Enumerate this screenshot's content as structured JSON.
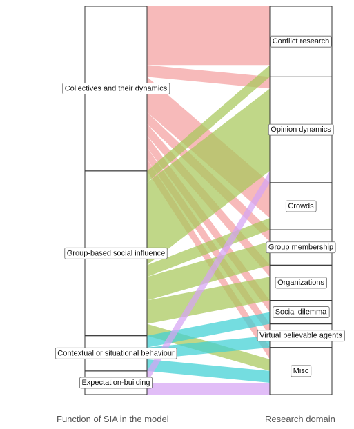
{
  "chart_data": {
    "type": "alluvial",
    "xlabel_left": "Function of SIA in the model",
    "xlabel_right": "Research domain",
    "left_strata": [
      {
        "label": "Collectives and their dynamics",
        "color": "#f4a0a0"
      },
      {
        "label": "Group-based social influence",
        "color": "#a8c85a"
      },
      {
        "label": "Contextual or situational behaviour",
        "color": "#3fd0d4"
      },
      {
        "label": "Expectation-building",
        "color": "#d6a4f4"
      }
    ],
    "right_strata": [
      {
        "label": "Conflict research"
      },
      {
        "label": "Opinion dynamics"
      },
      {
        "label": "Crowds"
      },
      {
        "label": "Group membership"
      },
      {
        "label": "Organizations"
      },
      {
        "label": "Social dilemma"
      },
      {
        "label": "Virtual believable agents"
      },
      {
        "label": "Misc"
      }
    ],
    "flows": [
      {
        "from": "Collectives and their dynamics",
        "to": "Conflict research",
        "value": 5
      },
      {
        "from": "Collectives and their dynamics",
        "to": "Opinion dynamics",
        "value": 1
      },
      {
        "from": "Collectives and their dynamics",
        "to": "Crowds",
        "value": 3
      },
      {
        "from": "Collectives and their dynamics",
        "to": "Group membership",
        "value": 1
      },
      {
        "from": "Collectives and their dynamics",
        "to": "Organizations",
        "value": 1
      },
      {
        "from": "Collectives and their dynamics",
        "to": "Social dilemma",
        "value": 1
      },
      {
        "from": "Collectives and their dynamics",
        "to": "Virtual believable agents",
        "value": 1
      },
      {
        "from": "Collectives and their dynamics",
        "to": "Misc",
        "value": 1
      },
      {
        "from": "Group-based social influence",
        "to": "Conflict research",
        "value": 1
      },
      {
        "from": "Group-based social influence",
        "to": "Opinion dynamics",
        "value": 7
      },
      {
        "from": "Group-based social influence",
        "to": "Crowds",
        "value": 1
      },
      {
        "from": "Group-based social influence",
        "to": "Group membership",
        "value": 2
      },
      {
        "from": "Group-based social influence",
        "to": "Organizations",
        "value": 2
      },
      {
        "from": "Group-based social influence",
        "to": "Misc",
        "value": 1
      },
      {
        "from": "Contextual or situational behaviour",
        "to": "Social dilemma",
        "value": 1
      },
      {
        "from": "Contextual or situational behaviour",
        "to": "Virtual believable agents",
        "value": 1
      },
      {
        "from": "Contextual or situational behaviour",
        "to": "Misc",
        "value": 1
      },
      {
        "from": "Expectation-building",
        "to": "Opinion dynamics",
        "value": 1
      },
      {
        "from": "Expectation-building",
        "to": "Misc",
        "value": 1
      }
    ]
  }
}
